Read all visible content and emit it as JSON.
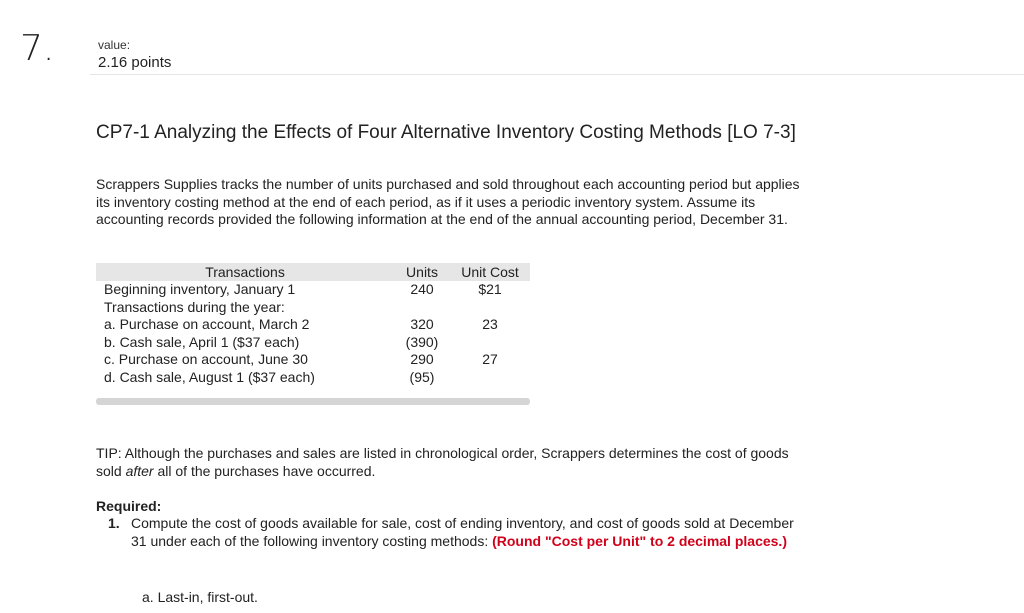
{
  "question": {
    "number": "7.",
    "value_label": "value:",
    "points": "2.16 points"
  },
  "title": "CP7-1 Analyzing the Effects of Four Alternative Inventory Costing Methods [LO 7-3]",
  "intro": "Scrappers Supplies tracks the number of units purchased and sold throughout each accounting period but applies its inventory costing method at the end of each period, as if it uses a periodic inventory system. Assume its accounting records provided the following information at the end of the annual accounting period, December 31.",
  "table": {
    "headers": [
      "Transactions",
      "Units",
      "Unit Cost"
    ],
    "rows": [
      {
        "desc": "Beginning inventory, January 1",
        "units": "240",
        "cost": "$21"
      },
      {
        "desc": "Transactions during the year:",
        "units": "",
        "cost": ""
      },
      {
        "desc": "a. Purchase on account, March 2",
        "units": "320",
        "cost": "23"
      },
      {
        "desc": "b. Cash sale, April 1 ($37 each)",
        "units": "(390)",
        "cost": ""
      },
      {
        "desc": "c. Purchase on account, June 30",
        "units": "290",
        "cost": "27"
      },
      {
        "desc": "d. Cash sale, August 1 ($37 each)",
        "units": "(95)",
        "cost": ""
      }
    ]
  },
  "tip": {
    "before": "TIP: Although the purchases and sales are listed in chronological order, Scrappers determines the cost of goods sold ",
    "emphasis": "after",
    "after": " all of the purchases have occurred."
  },
  "required": {
    "heading": "Required:",
    "item_number": "1.",
    "item_text": "Compute the cost of goods available for sale, cost of ending inventory, and cost of goods sold at December 31 under each of the following inventory costing methods: ",
    "item_note": "(Round \"Cost per Unit\" to 2 decimal places.)",
    "sub_a": "a.  Last-in, first-out."
  }
}
